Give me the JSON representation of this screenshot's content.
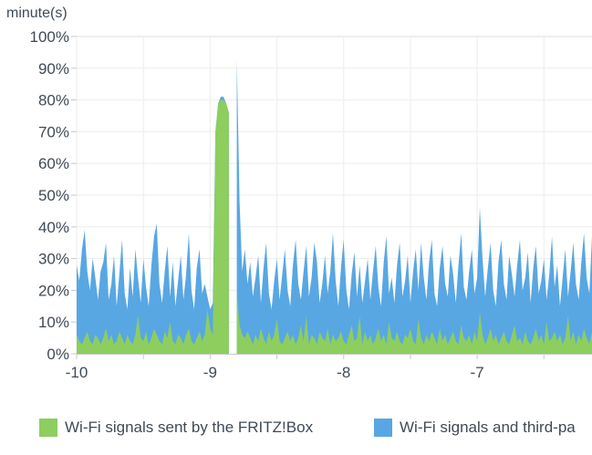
{
  "header": {
    "unit_label": "minute(s)"
  },
  "colors": {
    "fritzbox_green": "#8DCE5F",
    "thirdparty_blue": "#58A7E3",
    "text": "#3F4A56",
    "gridline": "#EDEDED",
    "gridline_top": "#DCDCDC",
    "axis": "#C9C9C9"
  },
  "legend": {
    "items": [
      {
        "label": "Wi-Fi signals sent by the FRITZ!Box",
        "color": "#8DCE5F"
      },
      {
        "label": "Wi-Fi signals and third-pa",
        "color": "#58A7E3"
      }
    ]
  },
  "chart_data": {
    "type": "area",
    "title": "",
    "ylabel": "minute(s)",
    "ylim": [
      0,
      100
    ],
    "xlim": [
      -10,
      -6.14
    ],
    "x_start": -10,
    "x_step": 0.02,
    "grid": true,
    "legend_position": "bottom",
    "y_tick_labels": [
      "0%",
      "10%",
      "20%",
      "30%",
      "40%",
      "50%",
      "60%",
      "70%",
      "80%",
      "90%",
      "100%"
    ],
    "x_ticks": [
      {
        "value": -10,
        "label": "-10"
      },
      {
        "value": -9,
        "label": "-9"
      },
      {
        "value": -8,
        "label": "-8"
      },
      {
        "value": -7,
        "label": "-7"
      }
    ],
    "x_minor_tick_step": 0.5,
    "series": [
      {
        "name": "Wi-Fi signals and third-pa",
        "color": "#58A7E3",
        "values": [
          28,
          23,
          33,
          39,
          26,
          20,
          30,
          24,
          17,
          26,
          29,
          35,
          17,
          22,
          31,
          15,
          25,
          36,
          19,
          14,
          27,
          18,
          33,
          24,
          16,
          30,
          21,
          15,
          28,
          37,
          41,
          22,
          16,
          26,
          34,
          18,
          29,
          15,
          23,
          31,
          17,
          25,
          38,
          20,
          14,
          27,
          33,
          19,
          22,
          18,
          14,
          16,
          70,
          79,
          81,
          81,
          79,
          76,
          null,
          null,
          93,
          48,
          26,
          33,
          22,
          29,
          18,
          24,
          31,
          16,
          27,
          35,
          19,
          14,
          23,
          30,
          17,
          25,
          33,
          20,
          15,
          28,
          36,
          22,
          17,
          26,
          34,
          18,
          24,
          35,
          29,
          16,
          22,
          31,
          19,
          26,
          38,
          23,
          15,
          27,
          36,
          20,
          14,
          25,
          32,
          18,
          28,
          16,
          23,
          30,
          17,
          26,
          34,
          21,
          15,
          29,
          37,
          19,
          24,
          16,
          28,
          35,
          18,
          23,
          31,
          16,
          26,
          33,
          20,
          35,
          24,
          17,
          29,
          36,
          19,
          15,
          27,
          34,
          22,
          18,
          31,
          25,
          16,
          28,
          38,
          21,
          17,
          26,
          33,
          19,
          24,
          46,
          30,
          18,
          27,
          35,
          20,
          15,
          29,
          36,
          22,
          17,
          31,
          25,
          18,
          28,
          36,
          20,
          24,
          32,
          16,
          27,
          34,
          19,
          23,
          30,
          17,
          25,
          37,
          21,
          28,
          15,
          24,
          33,
          18,
          26,
          35,
          22,
          17,
          29,
          38,
          24,
          19,
          37
        ]
      },
      {
        "name": "Wi-Fi signals sent by the FRITZ!Box",
        "color": "#8DCE5F",
        "values": [
          6,
          4,
          3,
          5,
          7,
          4,
          3,
          6,
          5,
          3,
          5,
          8,
          4,
          6,
          3,
          4,
          7,
          5,
          3,
          6,
          4,
          3,
          6,
          12,
          5,
          4,
          7,
          3,
          5,
          8,
          6,
          4,
          3,
          7,
          5,
          10,
          4,
          3,
          6,
          5,
          3,
          6,
          8,
          4,
          3,
          5,
          7,
          4,
          6,
          14,
          8,
          6,
          70,
          79,
          80,
          80,
          79,
          76,
          null,
          null,
          19,
          9,
          6,
          5,
          7,
          5,
          3,
          6,
          4,
          8,
          5,
          3,
          7,
          4,
          6,
          11,
          4,
          3,
          5,
          7,
          4,
          6,
          3,
          5,
          9,
          4,
          12,
          3,
          6,
          5,
          3,
          7,
          5,
          4,
          8,
          3,
          6,
          4,
          5,
          7,
          4,
          3,
          6,
          9,
          4,
          5,
          12,
          3,
          7,
          4,
          6,
          3,
          5,
          8,
          4,
          6,
          3,
          10,
          5,
          4,
          7,
          4,
          3,
          6,
          5,
          8,
          4,
          3,
          11,
          5,
          3,
          6,
          4,
          7,
          5,
          3,
          8,
          4,
          6,
          3,
          5,
          7,
          4,
          3,
          9,
          5,
          4,
          6,
          3,
          7,
          4,
          13,
          6,
          3,
          5,
          8,
          4,
          6,
          3,
          5,
          7,
          4,
          3,
          6,
          9,
          4,
          5,
          3,
          7,
          4,
          3,
          5,
          8,
          4,
          6,
          3,
          10,
          4,
          5,
          7,
          4,
          6,
          3,
          5,
          12,
          4,
          7,
          3,
          6,
          4,
          8,
          5,
          3,
          7
        ]
      }
    ]
  }
}
